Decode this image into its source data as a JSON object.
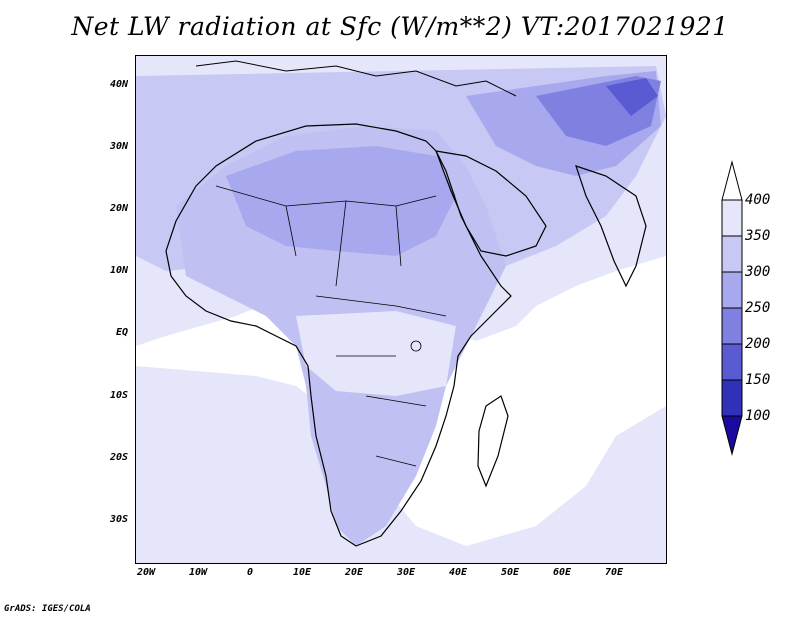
{
  "title": "Net LW radiation at Sfc (W/m**2) VT:2017021921",
  "footer": "GrADS: IGES/COLA",
  "map": {
    "lat_labels": [
      "40N",
      "30N",
      "20N",
      "10N",
      "EQ",
      "10S",
      "20S",
      "30S"
    ],
    "lon_labels": [
      "20W",
      "10W",
      "0",
      "10E",
      "20E",
      "30E",
      "40E",
      "50E",
      "60E",
      "70E"
    ]
  },
  "colorbar": {
    "labels": [
      "400",
      "350",
      "300",
      "250",
      "200",
      "150",
      "100"
    ],
    "colors": {
      "above_400": "#ffffff",
      "350_400": "#e6e6fb",
      "300_350": "#c8c8f4",
      "250_300": "#a8a8ee",
      "200_250": "#8080e0",
      "150_200": "#5a5ad2",
      "100_150": "#3030b8",
      "below_100": "#1a0aa0"
    }
  }
}
